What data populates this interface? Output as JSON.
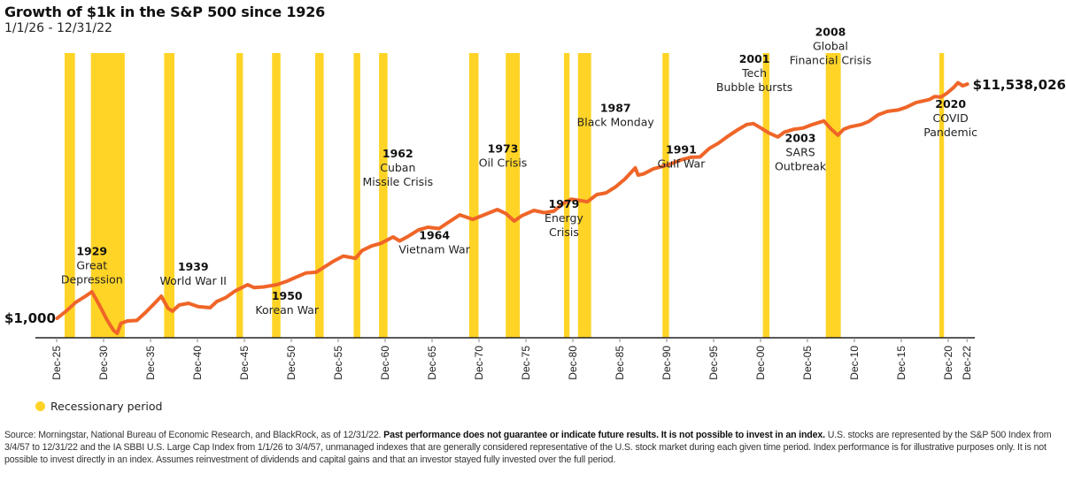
{
  "colors": {
    "line": "#EF6528",
    "recession": "#FFD426",
    "axis": "#222222"
  },
  "header": {
    "title": "Growth of $1k in the S&P 500 since 1926",
    "subtitle": "1/1/26 - 12/31/22"
  },
  "legend": {
    "label": "Recessionary period"
  },
  "footnote": {
    "source": "Source: Morningstar, National Bureau of Economic Research, and BlackRock, as of 12/31/22. ",
    "bold": "Past performance does not guarantee or indicate future results. It is not possible to invest in an index.",
    "rest": " U.S. stocks are represented by the S&P 500 Index from 3/4/57 to 12/31/22 and the IA SBBI U.S. Large Cap Index from 1/1/26 to 3/4/57, unmanaged indexes that are generally considered representative of the U.S. stock market during each given time period. Index performance is for illustrative purposes only. It is not possible to invest directly in an index.  Assumes reinvestment of dividends and capital gains and that an investor stayed fully invested over the full period."
  },
  "chart_data": {
    "type": "line",
    "title": "Growth of $1k in the S&P 500 since 1926",
    "subtitle": "1/1/26 - 12/31/22",
    "xlabel": "",
    "ylabel": "",
    "yscale": "log",
    "grid": false,
    "xlim": [
      1925.9,
      2023.1
    ],
    "ylim": [
      500,
      14000000
    ],
    "x_tick_labels": [
      "Dec-25",
      "Dec-30",
      "Dec-35",
      "Dec-40",
      "Dec-45",
      "Dec-50",
      "Dec-55",
      "Dec-60",
      "Dec-65",
      "Dec-70",
      "Dec-75",
      "Dec-80",
      "Dec-85",
      "Dec-90",
      "Dec-95",
      "Dec-00",
      "Dec-05",
      "Dec-10",
      "Dec-15",
      "Dec-20",
      "Dec-22"
    ],
    "x_tick_values": [
      1925.95,
      1930.95,
      1935.95,
      1940.95,
      1945.95,
      1950.95,
      1955.95,
      1960.95,
      1965.95,
      1970.95,
      1975.95,
      1980.95,
      1985.95,
      1990.95,
      1995.95,
      2000.95,
      2005.95,
      2010.95,
      2015.95,
      2020.95,
      2022.95
    ],
    "series": [
      {
        "name": "Growth of $1k",
        "x": [
          1926.0,
          1927.0,
          1928.0,
          1929.0,
          1929.7,
          1930.5,
          1931.3,
          1932.0,
          1932.4,
          1932.8,
          1933.5,
          1934.5,
          1935.5,
          1936.5,
          1937.1,
          1937.8,
          1938.3,
          1939.0,
          1940.0,
          1941.0,
          1942.3,
          1943.0,
          1944.0,
          1945.0,
          1946.3,
          1947.0,
          1948.0,
          1949.4,
          1950.5,
          1951.5,
          1952.5,
          1953.6,
          1954.5,
          1955.5,
          1956.5,
          1957.8,
          1958.5,
          1959.5,
          1960.5,
          1961.8,
          1962.5,
          1963.5,
          1964.5,
          1965.5,
          1966.7,
          1967.5,
          1968.9,
          1970.3,
          1971.0,
          1972.9,
          1973.8,
          1974.7,
          1975.5,
          1976.8,
          1977.9,
          1978.9,
          1980.0,
          1980.8,
          1982.5,
          1983.5,
          1984.5,
          1985.5,
          1986.5,
          1987.6,
          1987.9,
          1988.5,
          1989.5,
          1990.7,
          1991.5,
          1992.5,
          1993.5,
          1994.5,
          1995.5,
          1996.5,
          1997.5,
          1998.6,
          1999.5,
          2000.2,
          2001.0,
          2001.8,
          2002.8,
          2003.5,
          2004.5,
          2005.5,
          2006.5,
          2007.7,
          2008.5,
          2009.2,
          2009.8,
          2010.5,
          2011.7,
          2012.5,
          2013.5,
          2014.5,
          2015.6,
          2016.5,
          2017.5,
          2018.9,
          2019.5,
          2020.2,
          2020.8,
          2021.5,
          2021.99,
          2022.5,
          2022.99
        ],
        "values": [
          1000,
          1350,
          1900,
          2400,
          2880,
          1700,
          950,
          620,
          548,
          820,
          900,
          920,
          1300,
          1900,
          2420,
          1500,
          1330,
          1700,
          1820,
          1600,
          1530,
          1950,
          2300,
          3000,
          3830,
          3400,
          3500,
          3830,
          4400,
          5200,
          6100,
          6300,
          7800,
          9900,
          12000,
          11000,
          15000,
          18000,
          20000,
          25800,
          22000,
          27000,
          34000,
          38000,
          36000,
          44000,
          62300,
          52000,
          57900,
          76900,
          66000,
          48600,
          60000,
          74200,
          68000,
          72000,
          100000,
          117000,
          105000,
          140000,
          150000,
          190000,
          260000,
          406000,
          305000,
          320000,
          390000,
          440000,
          485000,
          560000,
          620000,
          630000,
          886000,
          1100000,
          1450000,
          1900000,
          2300000,
          2380000,
          2000000,
          1650000,
          1400000,
          1700000,
          1900000,
          2000000,
          2300000,
          2650000,
          1900000,
          1500000,
          1900000,
          2100000,
          2300000,
          2600000,
          3400000,
          3900000,
          4100000,
          4600000,
          5500000,
          6200000,
          7000000,
          6900000,
          8000000,
          10000000,
          12200000,
          10800000,
          11538026
        ]
      }
    ],
    "recessions": [
      {
        "start": 1926.8,
        "end": 1927.9
      },
      {
        "start": 1929.6,
        "end": 1933.2
      },
      {
        "start": 1937.4,
        "end": 1938.5
      },
      {
        "start": 1945.1,
        "end": 1945.8
      },
      {
        "start": 1948.9,
        "end": 1949.8
      },
      {
        "start": 1953.5,
        "end": 1954.4
      },
      {
        "start": 1957.6,
        "end": 1958.3
      },
      {
        "start": 1960.3,
        "end": 1961.2
      },
      {
        "start": 1969.9,
        "end": 1970.9
      },
      {
        "start": 1973.8,
        "end": 1975.3
      },
      {
        "start": 1980.0,
        "end": 1980.6
      },
      {
        "start": 1981.5,
        "end": 1982.9
      },
      {
        "start": 1990.5,
        "end": 1991.2
      },
      {
        "start": 2001.2,
        "end": 2001.9
      },
      {
        "start": 2007.9,
        "end": 2009.5
      },
      {
        "start": 2020.0,
        "end": 2020.5
      }
    ],
    "annotations": [
      {
        "year": "1929",
        "lines": [
          "Great",
          "Depression"
        ],
        "x": 1929.7,
        "value": 12500,
        "anchor": "middle"
      },
      {
        "year": "1939",
        "lines": [
          "World War II"
        ],
        "x": 1940.5,
        "value": 6700,
        "anchor": "middle"
      },
      {
        "year": "1950",
        "lines": [
          "Korean War"
        ],
        "x": 1950.5,
        "value": 2100,
        "anchor": "middle"
      },
      {
        "year": "1962",
        "lines": [
          "Cuban",
          "Missile Crisis"
        ],
        "x": 1962.3,
        "value": 620000,
        "anchor": "middle"
      },
      {
        "year": "1964",
        "lines": [
          "Vietnam War"
        ],
        "x": 1966.2,
        "value": 23500,
        "anchor": "middle"
      },
      {
        "year": "1973",
        "lines": [
          "Oil Crisis"
        ],
        "x": 1973.5,
        "value": 750000,
        "anchor": "middle"
      },
      {
        "year": "1979",
        "lines": [
          "Energy",
          "Crisis"
        ],
        "x": 1980.0,
        "value": 83000,
        "anchor": "middle"
      },
      {
        "year": "1987",
        "lines": [
          "Black Monday"
        ],
        "x": 1985.5,
        "value": 3800000,
        "anchor": "middle"
      },
      {
        "year": "1991",
        "lines": [
          "Gulf War"
        ],
        "x": 1992.5,
        "value": 720000,
        "anchor": "middle"
      },
      {
        "year": "2001",
        "lines": [
          "Tech",
          "Bubble bursts"
        ],
        "x": 2000.3,
        "value": 27000000,
        "anchor": "middle"
      },
      {
        "year": "2003",
        "lines": [
          "SARS",
          "Outbreak"
        ],
        "x": 2005.2,
        "value": 1150000,
        "anchor": "middle"
      },
      {
        "year": "2008",
        "lines": [
          "Global",
          "Financial Crisis"
        ],
        "x": 2008.4,
        "value": 80000000,
        "anchor": "middle"
      },
      {
        "year": "2020",
        "lines": [
          "COVID",
          "Pandemic"
        ],
        "x": 2021.2,
        "value": 4500000,
        "anchor": "middle"
      }
    ],
    "start_label": "$1,000",
    "end_label": "$11,538,026",
    "legend": [
      {
        "label": "Recessionary period",
        "type": "recession"
      }
    ]
  }
}
